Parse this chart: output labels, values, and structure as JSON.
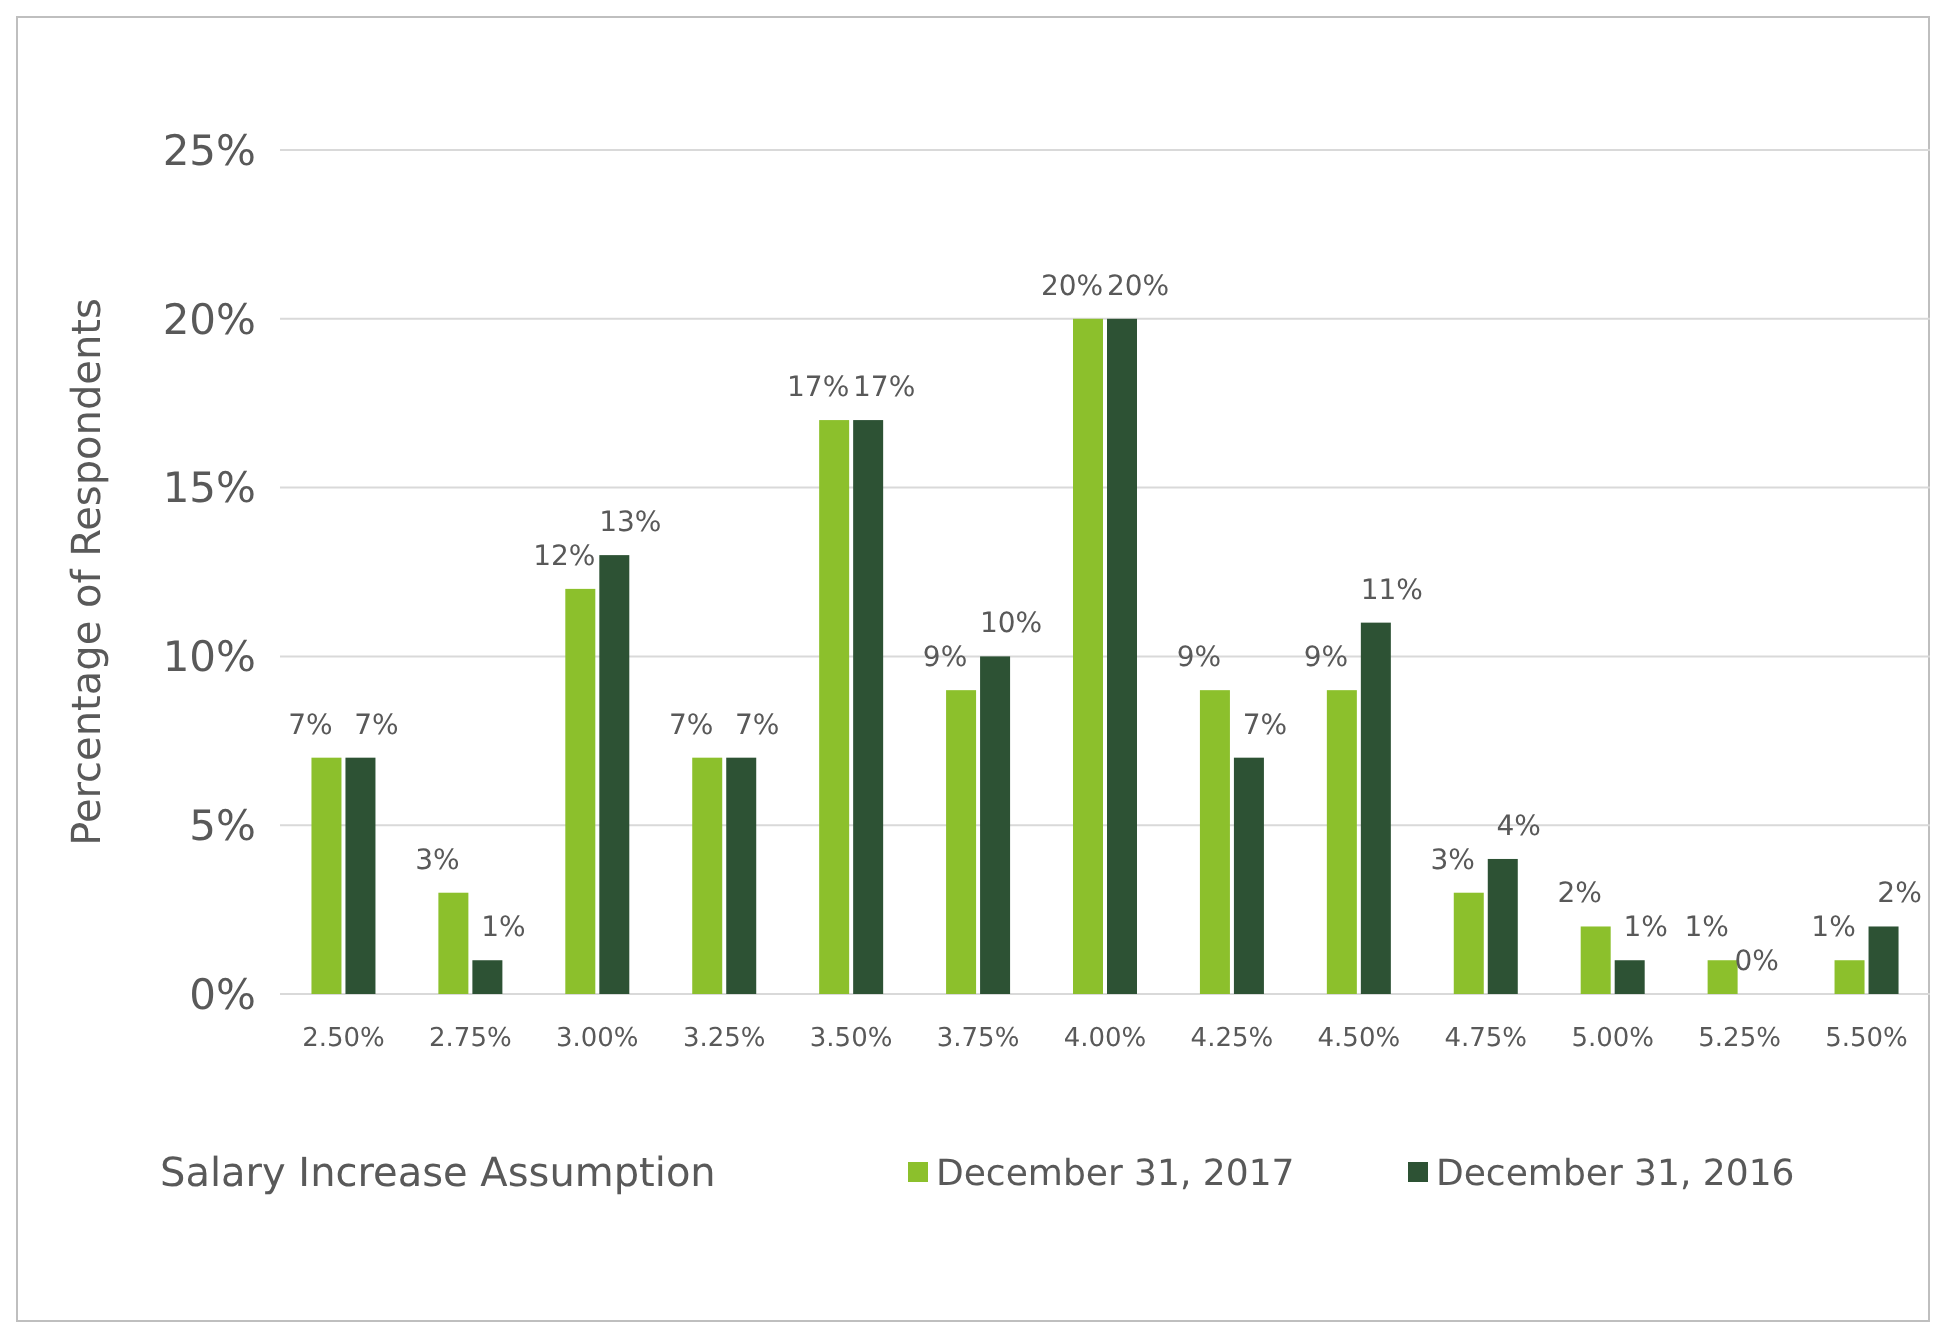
{
  "chart_data": {
    "type": "bar",
    "xlabel": "Salary Increase Assumption",
    "ylabel": "Percentage of Respondents",
    "categories": [
      "2.50%",
      "2.75%",
      "3.00%",
      "3.25%",
      "3.50%",
      "3.75%",
      "4.00%",
      "4.25%",
      "4.50%",
      "4.75%",
      "5.00%",
      "5.25%",
      "5.50%"
    ],
    "series": [
      {
        "name": "December 31, 2017",
        "color": "#8cc02c",
        "values": [
          7,
          3,
          12,
          7,
          17,
          9,
          20,
          9,
          9,
          3,
          2,
          1,
          1
        ],
        "value_labels": [
          "7%",
          "3%",
          "12%",
          "7%",
          "17%",
          "9%",
          "20%",
          "9%",
          "9%",
          "3%",
          "2%",
          "1%",
          "1%"
        ]
      },
      {
        "name": "December 31, 2016",
        "color": "#2d5234",
        "values": [
          7,
          1,
          13,
          7,
          17,
          10,
          20,
          7,
          11,
          4,
          1,
          0,
          2
        ],
        "value_labels": [
          "7%",
          "1%",
          "13%",
          "7%",
          "17%",
          "10%",
          "20%",
          "7%",
          "11%",
          "4%",
          "1%",
          "0%",
          "2%"
        ]
      }
    ],
    "ylim": [
      0,
      25
    ],
    "yticks": [
      {
        "value": 0,
        "label": "0%"
      },
      {
        "value": 5,
        "label": "5%"
      },
      {
        "value": 10,
        "label": "10%"
      },
      {
        "value": 15,
        "label": "15%"
      },
      {
        "value": 20,
        "label": "20%"
      },
      {
        "value": 25,
        "label": "25%"
      }
    ],
    "grid": "y",
    "legend": "bottom"
  }
}
